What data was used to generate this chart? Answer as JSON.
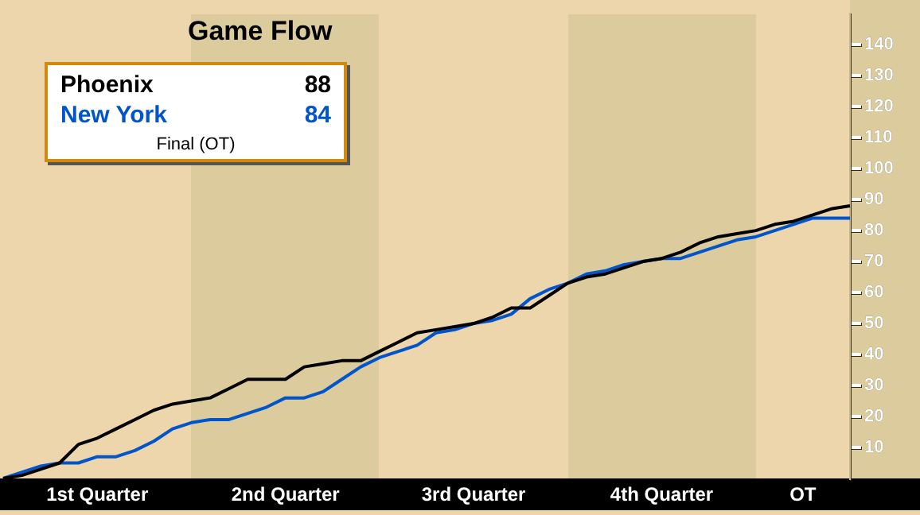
{
  "chart_data": {
    "type": "line",
    "title": "Game Flow",
    "categories": [
      null,
      null,
      null,
      null,
      null,
      null,
      null,
      null,
      null,
      null,
      null,
      null,
      null,
      null,
      null,
      null,
      null,
      null,
      null,
      null,
      null,
      null,
      null,
      null,
      null,
      null,
      null,
      null,
      null,
      null,
      null,
      null,
      null,
      null,
      null,
      null,
      null,
      null,
      null,
      null,
      null,
      null,
      null,
      null,
      null,
      null
    ],
    "ylim": [
      0,
      150
    ],
    "yticks": [
      10,
      20,
      30,
      40,
      50,
      60,
      70,
      80,
      90,
      100,
      110,
      120,
      130,
      140
    ],
    "tick_labels": "y",
    "grid": false,
    "marker": "none",
    "line_style": "solid",
    "annotations": [
      "88",
      "84",
      "Final (OT)",
      "1st Quarter",
      "2nd Quarter",
      "3rd Quarter",
      "4th Quarter",
      "OT"
    ],
    "series": [
      {
        "name": "Phoenix",
        "color": "#000000",
        "values": [
          0,
          1,
          3,
          5,
          11,
          13,
          16,
          19,
          22,
          24,
          25,
          26,
          29,
          32,
          32,
          32,
          36,
          37,
          38,
          38,
          41,
          44,
          47,
          48,
          49,
          50,
          52,
          55,
          55,
          59,
          63,
          65,
          66,
          68,
          70,
          71,
          73,
          76,
          78,
          79,
          80,
          82,
          83,
          85,
          87,
          88
        ]
      },
      {
        "name": "New York",
        "color": "#0055cc",
        "values": [
          0,
          2,
          4,
          5,
          5,
          7,
          7,
          9,
          12,
          16,
          18,
          19,
          19,
          21,
          23,
          26,
          26,
          28,
          32,
          36,
          39,
          41,
          43,
          47,
          48,
          50,
          51,
          53,
          58,
          61,
          63,
          66,
          67,
          69,
          70,
          71,
          71,
          73,
          75,
          77,
          78,
          80,
          82,
          84,
          84,
          84
        ]
      }
    ]
  }
}
